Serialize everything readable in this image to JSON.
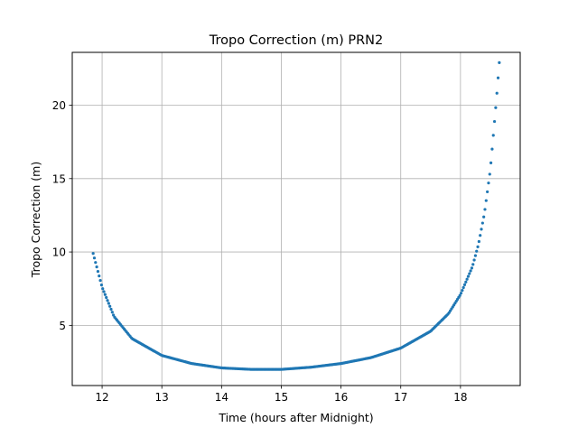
{
  "chart_data": {
    "type": "scatter",
    "title": "Tropo Correction (m) PRN2",
    "xlabel": "Time (hours after Midnight)",
    "ylabel": "Tropo Correction (m)",
    "xlim": [
      11.5,
      19.0
    ],
    "ylim": [
      0.9,
      23.6
    ],
    "xticks": [
      12,
      13,
      14,
      15,
      16,
      17,
      18
    ],
    "yticks": [
      5,
      10,
      15,
      20
    ],
    "xtick_labels": [
      "12",
      "13",
      "14",
      "15",
      "16",
      "17",
      "18"
    ],
    "ytick_labels": [
      "5",
      "10",
      "15",
      "20"
    ],
    "grid": true,
    "marker_color": "#1f77b4",
    "series": [
      {
        "x_range": [
          11.85,
          18.65
        ],
        "curve_points": [
          {
            "x": 11.85,
            "y": 9.9
          },
          {
            "x": 12.0,
            "y": 7.6
          },
          {
            "x": 12.2,
            "y": 5.6
          },
          {
            "x": 12.5,
            "y": 4.1
          },
          {
            "x": 13.0,
            "y": 2.95
          },
          {
            "x": 13.5,
            "y": 2.4
          },
          {
            "x": 14.0,
            "y": 2.1
          },
          {
            "x": 14.5,
            "y": 2.0
          },
          {
            "x": 15.0,
            "y": 2.0
          },
          {
            "x": 15.5,
            "y": 2.15
          },
          {
            "x": 16.0,
            "y": 2.4
          },
          {
            "x": 16.5,
            "y": 2.8
          },
          {
            "x": 17.0,
            "y": 3.45
          },
          {
            "x": 17.5,
            "y": 4.6
          },
          {
            "x": 17.8,
            "y": 5.8
          },
          {
            "x": 18.0,
            "y": 7.1
          },
          {
            "x": 18.2,
            "y": 9.0
          },
          {
            "x": 18.3,
            "y": 10.5
          },
          {
            "x": 18.4,
            "y": 12.6
          },
          {
            "x": 18.5,
            "y": 15.6
          },
          {
            "x": 18.6,
            "y": 20.3
          },
          {
            "x": 18.65,
            "y": 22.9
          }
        ]
      }
    ]
  }
}
